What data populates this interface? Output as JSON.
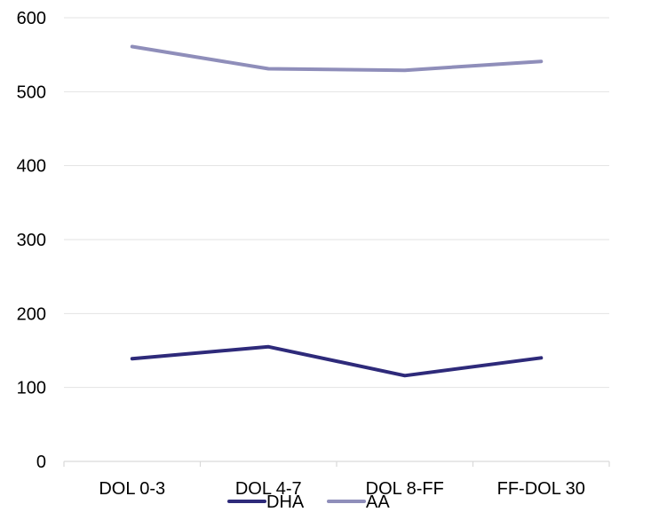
{
  "chart_data": {
    "type": "line",
    "categories": [
      "DOL 0-3",
      "DOL 4-7",
      "DOL 8-FF",
      "FF-DOL 30"
    ],
    "series": [
      {
        "name": "DHA",
        "values": [
          139,
          155,
          116,
          140
        ],
        "color": "#2e2a7a"
      },
      {
        "name": "AA",
        "values": [
          561,
          531,
          529,
          541
        ],
        "color": "#8f8eba"
      }
    ],
    "ylim": [
      0,
      600
    ],
    "yticks": [
      0,
      100,
      200,
      300,
      400,
      500,
      600
    ],
    "grid": true,
    "legend_position": "bottom"
  }
}
